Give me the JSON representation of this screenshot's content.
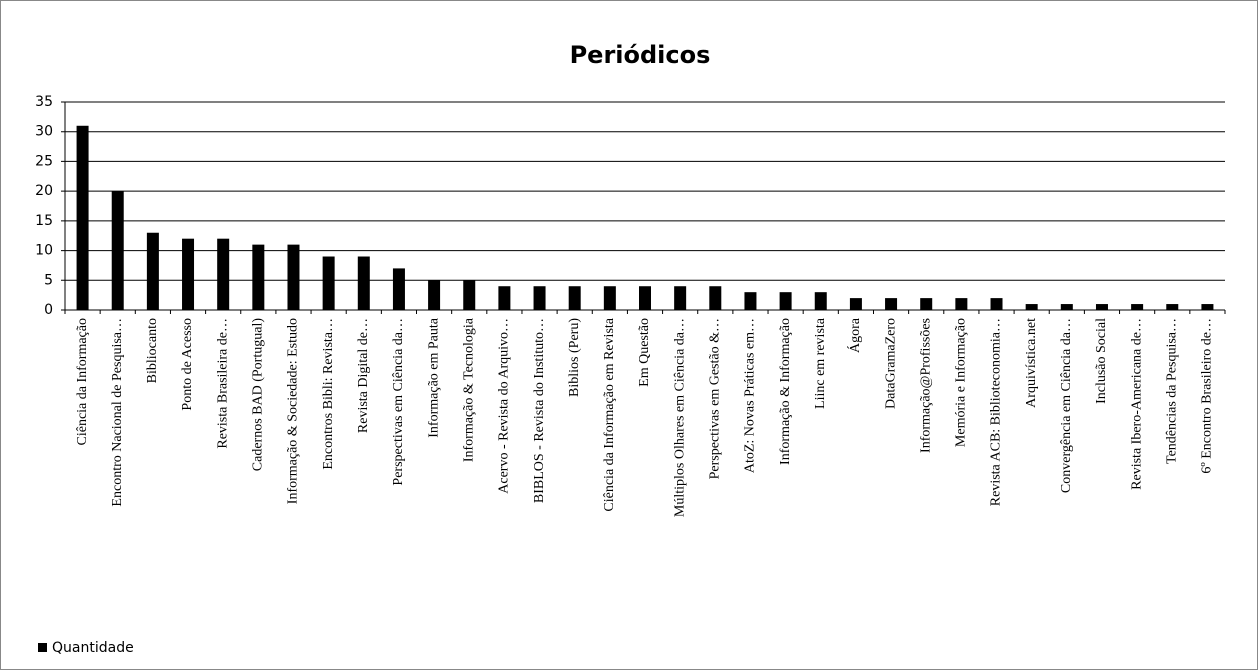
{
  "chart_data": {
    "type": "bar",
    "title": "Periódicos",
    "categories": [
      "Ciência da Informação",
      "Encontro Nacional de Pesquisa…",
      "Bibliocanto",
      "Ponto de Acesso",
      "Revista Brasileira de…",
      "Cadernos BAD (Portugual)",
      "Informação & Sociedade: Estudo",
      "Encontros Bibli: Revista…",
      "Revista Digital de…",
      "Perspectivas em Ciência da…",
      "Informação em Pauta",
      "Informação & Tecnologia",
      "Acervo - Revista do Arquivo…",
      "BIBLOS - Revista do Instituto…",
      "Biblios (Peru)",
      "Ciência da Informação em Revista",
      "Em Questão",
      "Múltiplos Olhares em Ciência da…",
      "Perspectivas em Gestão &…",
      "AtoZ: Novas Práticas em…",
      "Informação & Informação",
      "Liinc em revista",
      "Ágora",
      "DataGramaZero",
      "Informação@Profissões",
      "Memória e Informação",
      "Revista ACB: Biblioteconomia…",
      "Arquivística.net",
      "Convergência em Ciência da…",
      "Inclusão Social",
      "Revista Ibero-Americana de…",
      "Tendências da Pesquisa…",
      "6º Encontro Brasileiro de…"
    ],
    "series": [
      {
        "name": "Quantidade",
        "color": "#000000",
        "values": [
          31,
          20,
          13,
          12,
          12,
          11,
          11,
          9,
          9,
          7,
          5,
          5,
          4,
          4,
          4,
          4,
          4,
          4,
          4,
          3,
          3,
          3,
          2,
          2,
          2,
          2,
          2,
          1,
          1,
          1,
          1,
          1,
          1
        ]
      }
    ],
    "ylim": [
      0,
      35
    ],
    "yticks": [
      0,
      5,
      10,
      15,
      20,
      25,
      30,
      35
    ],
    "grid": true,
    "legend": "bottom-left"
  }
}
